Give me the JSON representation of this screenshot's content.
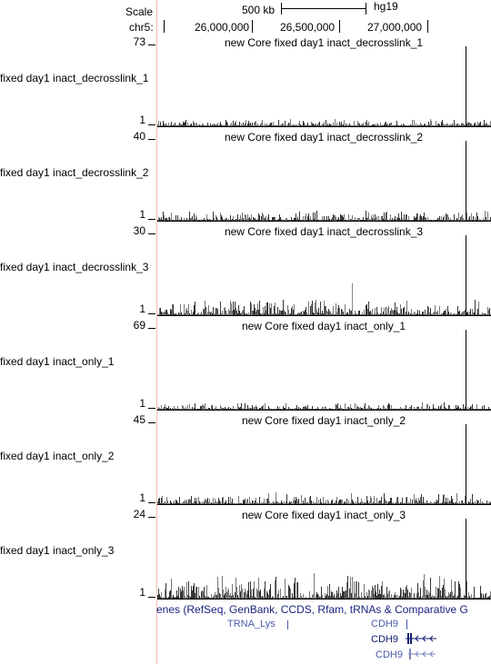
{
  "ruler": {
    "scale_label": "Scale",
    "scale_size": "500 kb",
    "assembly": "hg19",
    "chrom_label": "chr5:",
    "positions": [
      "26,000,000",
      "26,500,000",
      "27,000,000"
    ]
  },
  "tracks": [
    {
      "title": "new Core fixed day1 inact_decrosslink_1",
      "side_label": "fixed day1 inact_decrosslink_1",
      "ymax": "73",
      "ymin": "1",
      "color": "#000000"
    },
    {
      "title": "new Core fixed day1 inact_decrosslink_2",
      "side_label": "fixed day1 inact_decrosslink_2",
      "ymax": "40",
      "ymin": "1",
      "color": "#000000"
    },
    {
      "title": "new Core fixed day1 inact_decrosslink_3",
      "side_label": "fixed day1 inact_decrosslink_3",
      "ymax": "30",
      "ymin": "1",
      "color": "#000000"
    },
    {
      "title": "new Core fixed day1 inact_only_1",
      "side_label": "fixed day1 inact_only_1",
      "ymax": "69",
      "ymin": "1",
      "color": "#000000"
    },
    {
      "title": "new Core fixed day1 inact_only_2",
      "side_label": "fixed day1 inact_only_2",
      "ymax": "45",
      "ymin": "1",
      "color": "#000000"
    },
    {
      "title": "new Core fixed day1 inact_only_3",
      "side_label": "fixed day1 inact_only_3",
      "ymax": "24",
      "ymin": "1",
      "color": "#000000"
    }
  ],
  "genes": {
    "title": "enes (RefSeq, GenBank, CCDS, Rfam, tRNAs & Comparative G",
    "items": [
      "TRNA_Lys",
      "CDH9",
      "CDH9",
      "CDH9"
    ],
    "color": "#1a237e"
  }
}
